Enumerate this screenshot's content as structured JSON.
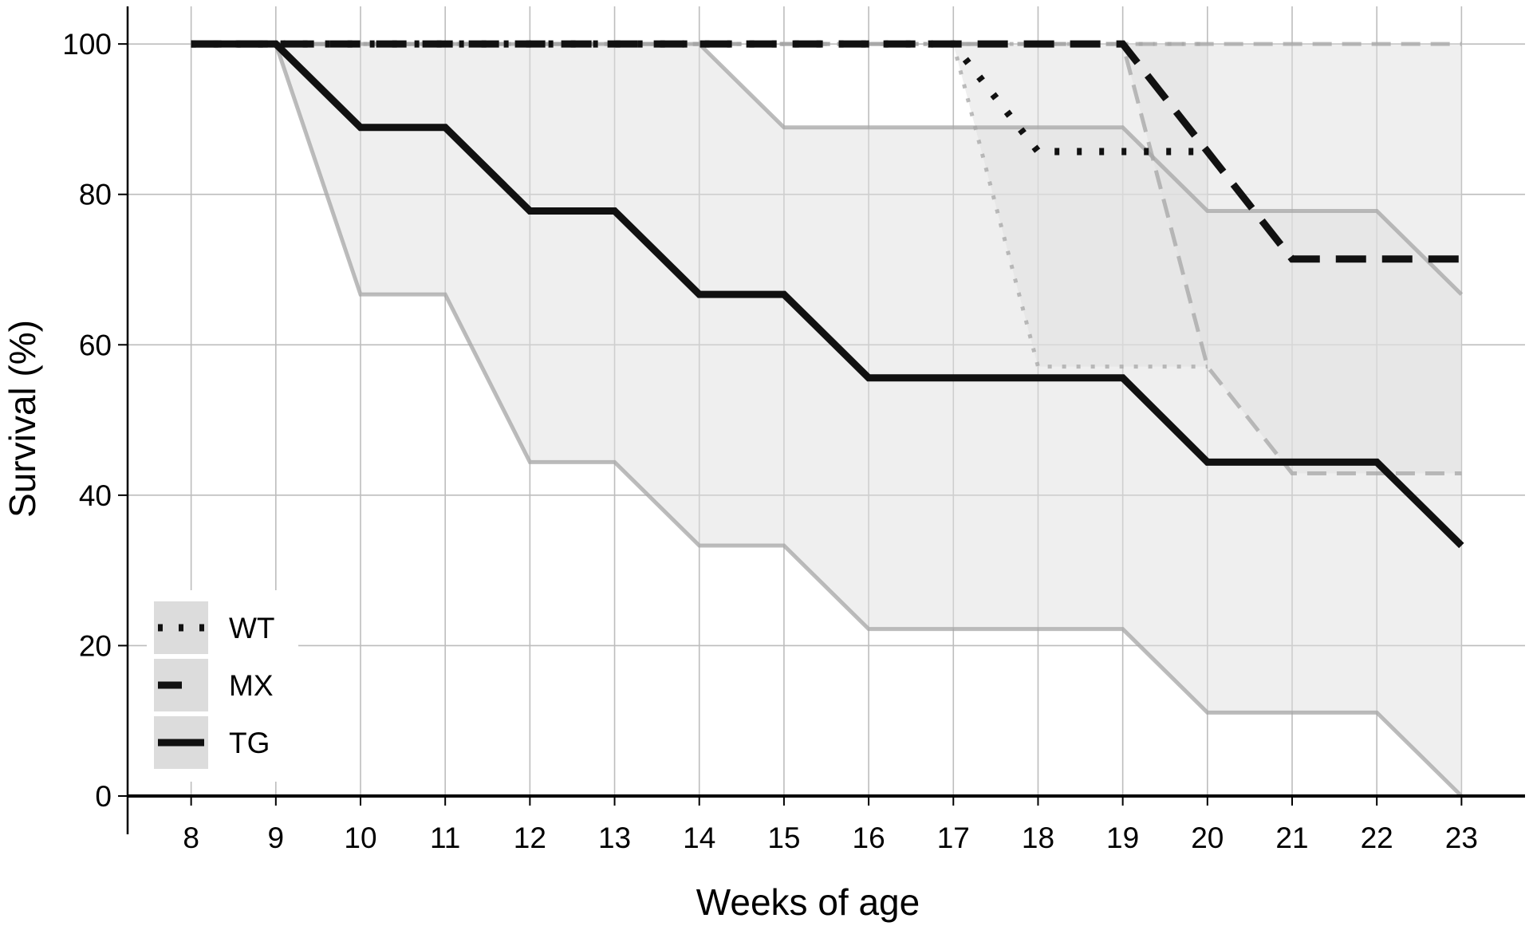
{
  "chart_data": {
    "type": "line",
    "xlabel": "Weeks of age",
    "ylabel": "Survival (%)",
    "xlim": [
      7.25,
      23.75
    ],
    "ylim": [
      0,
      105
    ],
    "x_ticks": [
      8,
      9,
      10,
      11,
      12,
      13,
      14,
      15,
      16,
      17,
      18,
      19,
      20,
      21,
      22,
      23
    ],
    "y_ticks": [
      0,
      20,
      40,
      60,
      80,
      100
    ],
    "grid": true,
    "legend_position": "bottom-left",
    "series": [
      {
        "name": "WT",
        "style": "dotted",
        "x": [
          8,
          9,
          10,
          11,
          12,
          13,
          14,
          15,
          16,
          17,
          18,
          19,
          20
        ],
        "values": [
          100,
          100,
          100,
          100,
          100,
          100,
          100,
          100,
          100,
          100,
          85.7,
          85.7,
          85.7
        ],
        "lower": [
          100,
          100,
          100,
          100,
          100,
          100,
          100,
          100,
          100,
          100,
          57.1,
          57.1,
          57.1
        ],
        "upper": [
          100,
          100,
          100,
          100,
          100,
          100,
          100,
          100,
          100,
          100,
          100,
          100,
          100
        ]
      },
      {
        "name": "MX",
        "style": "dashed",
        "x": [
          8,
          9,
          10,
          11,
          12,
          13,
          14,
          15,
          16,
          17,
          18,
          19,
          20,
          21,
          22,
          23
        ],
        "values": [
          100,
          100,
          100,
          100,
          100,
          100,
          100,
          100,
          100,
          100,
          100,
          100,
          85.7,
          71.4,
          71.4,
          71.4
        ],
        "lower": [
          100,
          100,
          100,
          100,
          100,
          100,
          100,
          100,
          100,
          100,
          100,
          100,
          57.1,
          42.9,
          42.9,
          42.9
        ],
        "upper": [
          100,
          100,
          100,
          100,
          100,
          100,
          100,
          100,
          100,
          100,
          100,
          100,
          100,
          100,
          100,
          100
        ]
      },
      {
        "name": "TG",
        "style": "solid",
        "x": [
          8,
          9,
          10,
          11,
          12,
          13,
          14,
          15,
          16,
          17,
          18,
          19,
          20,
          21,
          22,
          23
        ],
        "values": [
          100,
          100,
          88.9,
          88.9,
          77.8,
          77.8,
          66.7,
          66.7,
          55.6,
          55.6,
          55.6,
          55.6,
          44.4,
          44.4,
          44.4,
          33.3
        ],
        "lower": [
          100,
          100,
          66.7,
          66.7,
          44.4,
          44.4,
          33.3,
          33.3,
          22.2,
          22.2,
          22.2,
          22.2,
          11.1,
          11.1,
          11.1,
          0
        ],
        "upper": [
          100,
          100,
          100,
          100,
          100,
          100,
          100,
          88.9,
          88.9,
          88.9,
          88.9,
          88.9,
          77.8,
          77.8,
          77.8,
          66.7
        ]
      }
    ]
  }
}
